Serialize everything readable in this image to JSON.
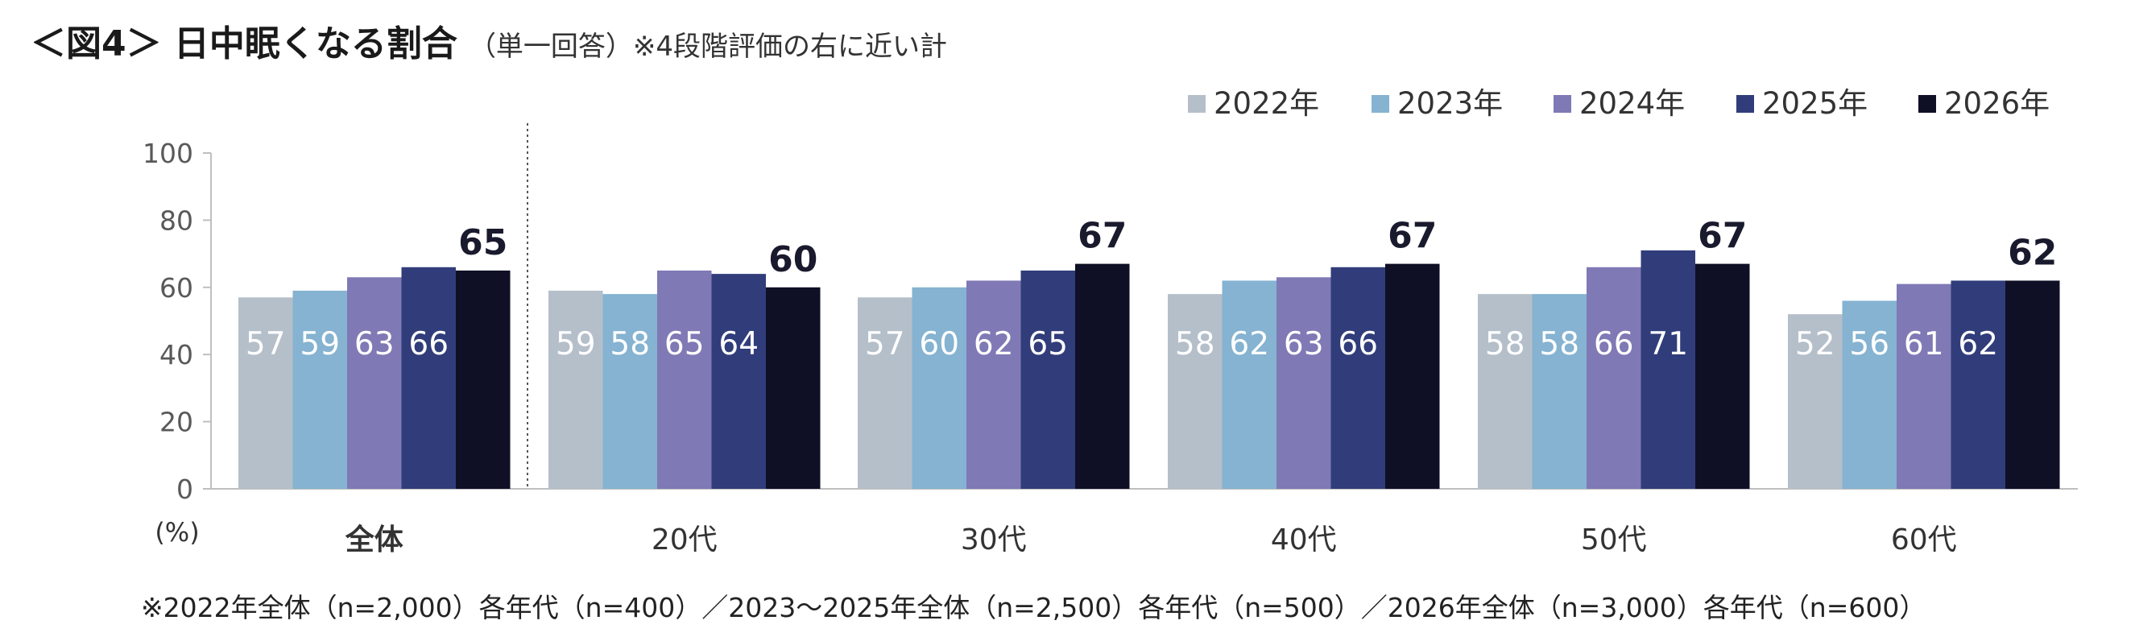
{
  "title": "＜図4＞ 日中眠くなる割合",
  "subtitle": "（単一回答）※4段階評価の右に近い計",
  "footnote": "※2022年全体（n=2,000）各年代（n=400）／2023～2025年全体（n=2,500）各年代（n=500）／2026年全体（n=3,000）各年代（n=600）",
  "chart_data": {
    "type": "bar",
    "categories": [
      "全体",
      "20代",
      "30代",
      "40代",
      "50代",
      "60代"
    ],
    "series": [
      {
        "name": "2022年",
        "color": "#b5bfca",
        "values": [
          57,
          59,
          57,
          58,
          58,
          52
        ]
      },
      {
        "name": "2023年",
        "color": "#85b3d1",
        "values": [
          59,
          58,
          60,
          62,
          58,
          56
        ]
      },
      {
        "name": "2024年",
        "color": "#7f79b5",
        "values": [
          63,
          65,
          62,
          63,
          66,
          61
        ]
      },
      {
        "name": "2025年",
        "color": "#313d7a",
        "values": [
          66,
          64,
          65,
          66,
          71,
          62
        ]
      },
      {
        "name": "2026年",
        "color": "#0f0f26",
        "values": [
          65,
          60,
          67,
          67,
          67,
          62
        ]
      }
    ],
    "ylabel": "(%)",
    "ylim": [
      0,
      100
    ],
    "yticks": [
      0,
      20,
      40,
      60,
      80,
      100
    ],
    "legend_position": "top-right",
    "grid": false
  }
}
